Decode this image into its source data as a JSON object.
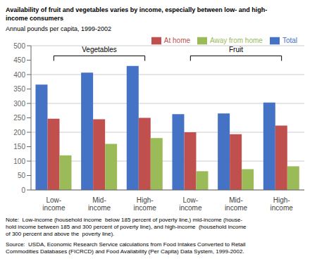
{
  "chart_data": {
    "type": "bar",
    "title": "Availability of fruit and vegetables varies by income, especially between low- and high-\nincome consumers",
    "subtitle": "Annual pounds per capita, 1999-2002",
    "categories": [
      "Low-\nincome",
      "Mid-\nincome",
      "High-\nincome",
      "Low-\nincome",
      "Mid-\nincome",
      "High-\nincome"
    ],
    "series": [
      {
        "name": "Total",
        "color": "#4472C4",
        "values": [
          365,
          407,
          430,
          263,
          265,
          303
        ]
      },
      {
        "name": "At home",
        "color": "#C0504D",
        "values": [
          247,
          245,
          250,
          200,
          193,
          223
        ]
      },
      {
        "name": "Away from home",
        "color": "#9BBB59",
        "values": [
          120,
          160,
          180,
          65,
          72,
          82
        ]
      }
    ],
    "ylim": [
      0,
      500
    ],
    "yticks": [
      0,
      50,
      100,
      150,
      200,
      250,
      300,
      350,
      400,
      450,
      500
    ],
    "grid": true,
    "legend": "upper right",
    "annotations": [
      {
        "text": "Vegetables",
        "start": 0,
        "end": 2
      },
      {
        "text": "Fruit",
        "start": 3,
        "end": 5
      }
    ],
    "note": "Note:  Low-income (household income  below 185 percent of poverty line,) mid-income (house-\nhold income between 185 and 300 percent of poverty line), and high-income  (household income\nof 300 percent and above the  poverty line).",
    "source": "Source:  USDA, Economic Research Service calculations from Food Intakes Converted to Retail\nCommodities Databases (FICRCD) and Food Availability (Per Capita) Data System, 1999-2002."
  }
}
